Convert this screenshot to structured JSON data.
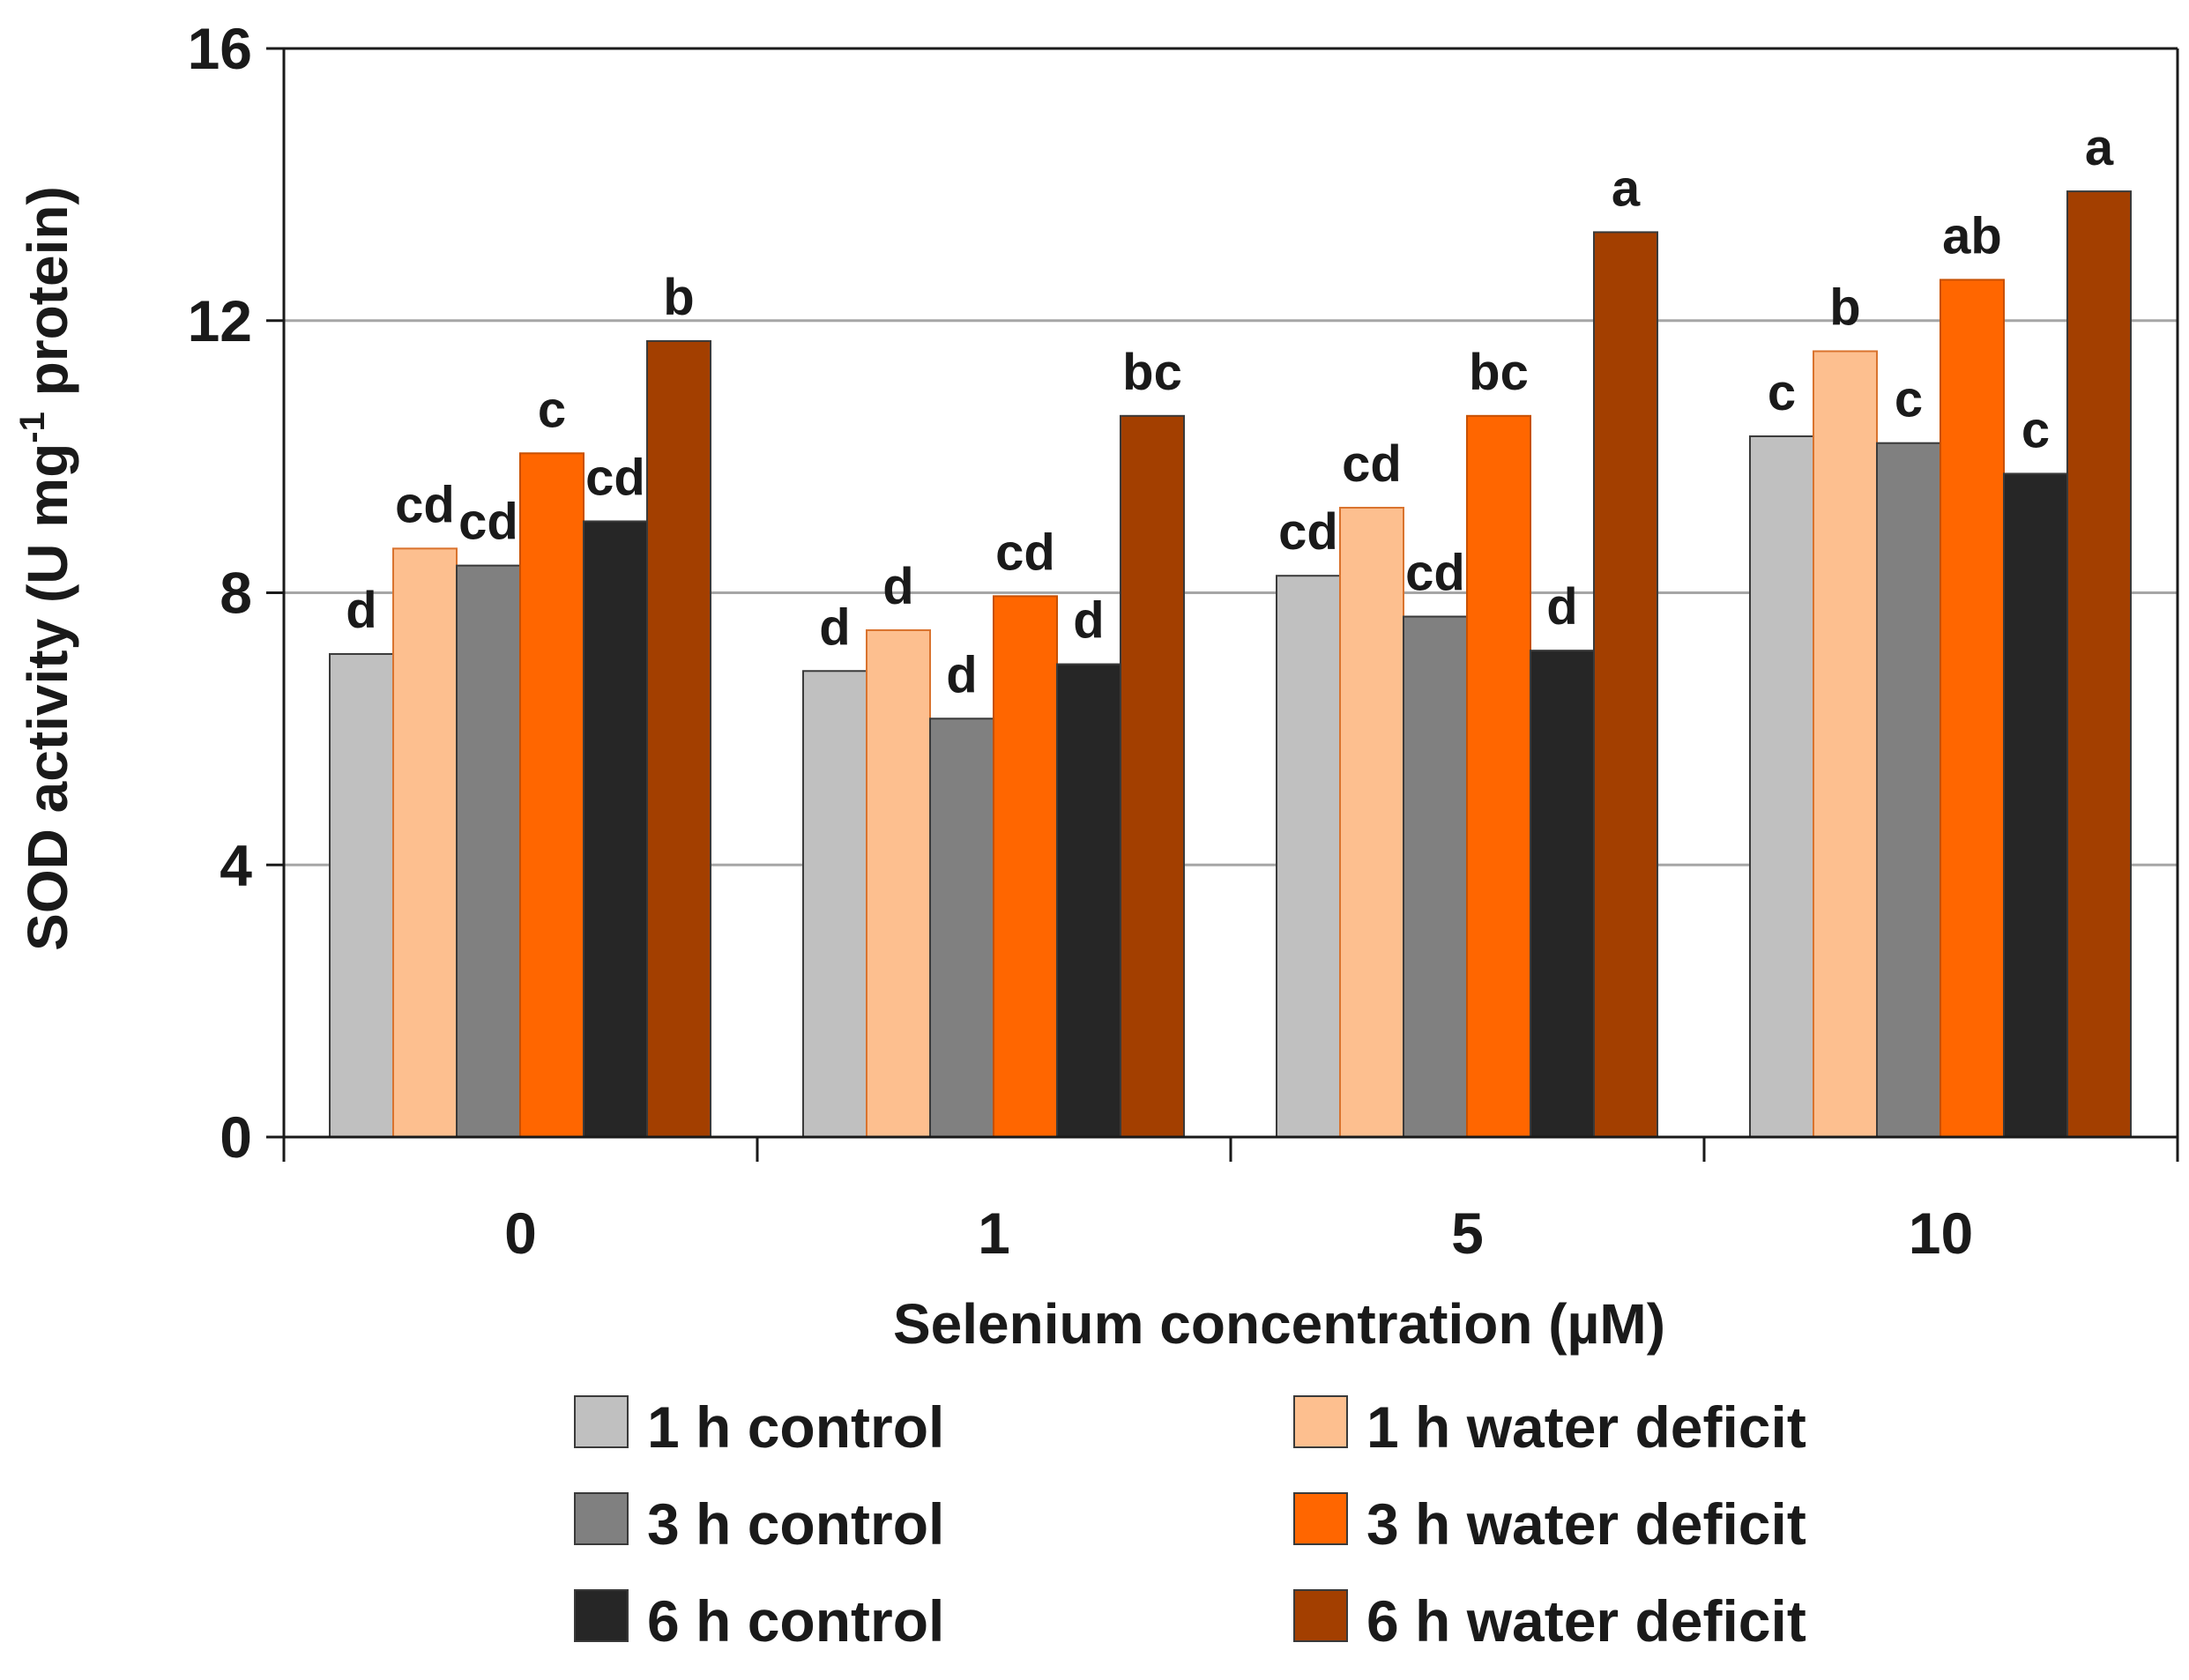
{
  "chart_data": {
    "type": "bar",
    "title": "",
    "xlabel": "Selenium concentration (µM)",
    "ylabel": {
      "prefix": "SOD activity (U mg",
      "superscript": "-1",
      "suffix": " protein)"
    },
    "ylim": [
      0,
      16
    ],
    "yticks": [
      "0",
      "4",
      "8",
      "12",
      "16"
    ],
    "grid": true,
    "legend_position": "bottom",
    "categories": [
      "0",
      "1",
      "5",
      "10"
    ],
    "series": [
      {
        "name": "1 h control",
        "color": "#c0c0c0",
        "values": [
          7.1,
          6.85,
          8.25,
          10.3
        ],
        "labels": [
          "d",
          "d",
          "cd",
          "c"
        ]
      },
      {
        "name": "1 h water deficit",
        "color": "#fdbf8f",
        "values": [
          8.65,
          7.45,
          9.25,
          11.55
        ],
        "labels": [
          "cd",
          "d",
          "cd",
          "b"
        ]
      },
      {
        "name": "3 h control",
        "color": "#808080",
        "values": [
          8.4,
          6.15,
          7.65,
          10.2
        ],
        "labels": [
          "cd",
          "d",
          "cd",
          "c"
        ]
      },
      {
        "name": "3 h water deficit",
        "color": "#ff6600",
        "values": [
          10.05,
          7.95,
          10.6,
          12.6
        ],
        "labels": [
          "c",
          "cd",
          "bc",
          "ab"
        ]
      },
      {
        "name": "6 h control",
        "color": "#262626",
        "values": [
          9.05,
          6.95,
          7.15,
          9.75
        ],
        "labels": [
          "cd",
          "d",
          "d",
          "c"
        ]
      },
      {
        "name": "6 h water deficit",
        "color": "#a33f00",
        "values": [
          11.7,
          10.6,
          13.3,
          13.9
        ],
        "labels": [
          "b",
          "bc",
          "a",
          "a"
        ]
      }
    ]
  }
}
